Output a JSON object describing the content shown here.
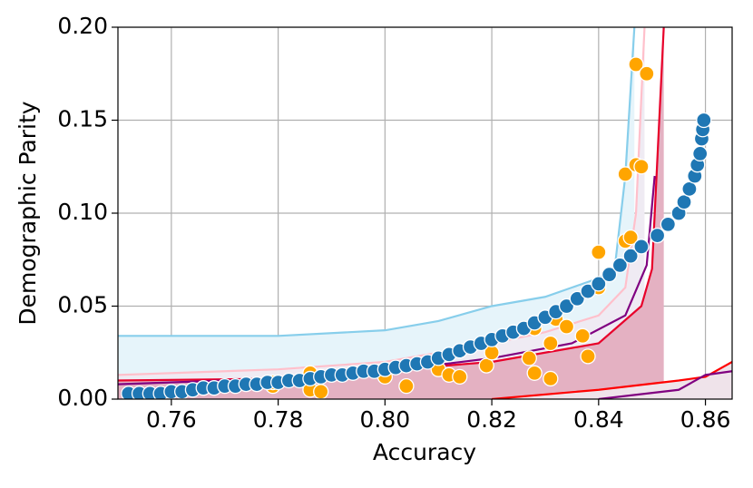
{
  "chart_data": {
    "type": "scatter",
    "x_label": "Accuracy",
    "y_label": "Demographic Parity",
    "xlim": [
      0.75,
      0.865
    ],
    "ylim": [
      0,
      0.2
    ],
    "xticks": [
      0.76,
      0.78,
      {
        "value": 0.8,
        "label": "0.80"
      },
      0.82,
      0.84,
      0.86
    ],
    "yticks": [
      {
        "value": 0,
        "label": "0.00"
      },
      0.05,
      {
        "value": 0.1,
        "label": "0.10"
      },
      0.15,
      {
        "value": 0.2,
        "label": "0.20"
      }
    ],
    "grid": true,
    "series": [
      {
        "type": "line",
        "color": "#87ceeb",
        "fill": "#e6f4fa",
        "x": [
          0.75,
          0.78,
          0.8,
          0.81,
          0.82,
          0.83,
          0.835,
          0.84,
          0.843,
          0.845,
          0.8467
        ],
        "values": [
          0.034,
          0.034,
          0.037,
          0.042,
          0.05,
          0.055,
          0.06,
          0.065,
          0.07,
          0.12,
          0.2
        ]
      },
      {
        "type": "line",
        "color": "#ffc0cb",
        "fill": "#efebf3",
        "x": [
          0.75,
          0.78,
          0.8,
          0.82,
          0.83,
          0.84,
          0.845,
          0.847,
          0.8486
        ],
        "values": [
          0.013,
          0.016,
          0.02,
          0.03,
          0.036,
          0.045,
          0.06,
          0.1,
          0.2
        ]
      },
      {
        "type": "line",
        "color": "#e8002a",
        "fill": "#e4b1c2",
        "x": [
          0.75,
          0.78,
          0.82,
          0.84,
          0.848,
          0.85,
          0.8522
        ],
        "values": [
          0.01,
          0.011,
          0.02,
          0.03,
          0.05,
          0.07,
          0.2
        ]
      },
      {
        "type": "line",
        "color": "#800080",
        "x": [
          0.75,
          0.78,
          0.8,
          0.82,
          0.835,
          0.845,
          0.849,
          0.8505
        ],
        "values": [
          0.008,
          0.011,
          0.015,
          0.022,
          0.03,
          0.045,
          0.072,
          0.12
        ]
      },
      {
        "type": "line",
        "color": "#ff0000",
        "fill": "#efe3ea",
        "x": [
          0.82,
          0.84,
          0.855,
          0.86,
          0.865
        ],
        "values": [
          0,
          0.005,
          0.01,
          0.012,
          0.02
        ]
      },
      {
        "type": "line",
        "color": "#800080",
        "x": [
          0.84,
          0.855,
          0.86,
          0.865
        ],
        "values": [
          0,
          0.005,
          0.013,
          0.015
        ]
      },
      {
        "type": "scatter",
        "color": "#ffa500",
        "x": [
          0.786,
          0.788,
          0.779,
          0.779,
          0.786,
          0.8,
          0.804,
          0.81,
          0.812,
          0.814,
          0.819,
          0.82,
          0.827,
          0.828,
          0.828,
          0.831,
          0.831,
          0.832,
          0.834,
          0.837,
          0.838,
          0.84,
          0.84,
          0.845,
          0.845,
          0.846,
          0.847,
          0.848,
          0.847,
          0.849
        ],
        "values": [
          0.005,
          0.004,
          0.007,
          0.009,
          0.014,
          0.012,
          0.007,
          0.016,
          0.013,
          0.012,
          0.018,
          0.025,
          0.022,
          0.014,
          0.038,
          0.011,
          0.03,
          0.043,
          0.039,
          0.034,
          0.023,
          0.06,
          0.079,
          0.085,
          0.121,
          0.087,
          0.126,
          0.125,
          0.18,
          0.175
        ]
      },
      {
        "type": "scatter",
        "color": "#1f77b4",
        "x": [
          0.752,
          0.754,
          0.756,
          0.758,
          0.76,
          0.762,
          0.764,
          0.766,
          0.768,
          0.77,
          0.772,
          0.774,
          0.776,
          0.778,
          0.78,
          0.782,
          0.784,
          0.786,
          0.788,
          0.79,
          0.792,
          0.794,
          0.796,
          0.798,
          0.8,
          0.802,
          0.804,
          0.806,
          0.808,
          0.81,
          0.812,
          0.814,
          0.816,
          0.818,
          0.82,
          0.822,
          0.824,
          0.826,
          0.828,
          0.83,
          0.832,
          0.834,
          0.836,
          0.838,
          0.84,
          0.842,
          0.844,
          0.846,
          0.848,
          0.851,
          0.853,
          0.855,
          0.856,
          0.857,
          0.858,
          0.8585,
          0.859,
          0.8593,
          0.8595,
          0.8597
        ],
        "values": [
          0.003,
          0.003,
          0.003,
          0.003,
          0.004,
          0.004,
          0.005,
          0.006,
          0.006,
          0.007,
          0.007,
          0.008,
          0.008,
          0.009,
          0.009,
          0.01,
          0.01,
          0.011,
          0.012,
          0.013,
          0.013,
          0.014,
          0.015,
          0.015,
          0.016,
          0.017,
          0.018,
          0.019,
          0.02,
          0.022,
          0.024,
          0.026,
          0.028,
          0.03,
          0.032,
          0.034,
          0.036,
          0.038,
          0.041,
          0.044,
          0.047,
          0.05,
          0.054,
          0.058,
          0.062,
          0.067,
          0.072,
          0.077,
          0.082,
          0.088,
          0.094,
          0.1,
          0.106,
          0.113,
          0.12,
          0.126,
          0.132,
          0.14,
          0.145,
          0.15
        ]
      }
    ]
  }
}
